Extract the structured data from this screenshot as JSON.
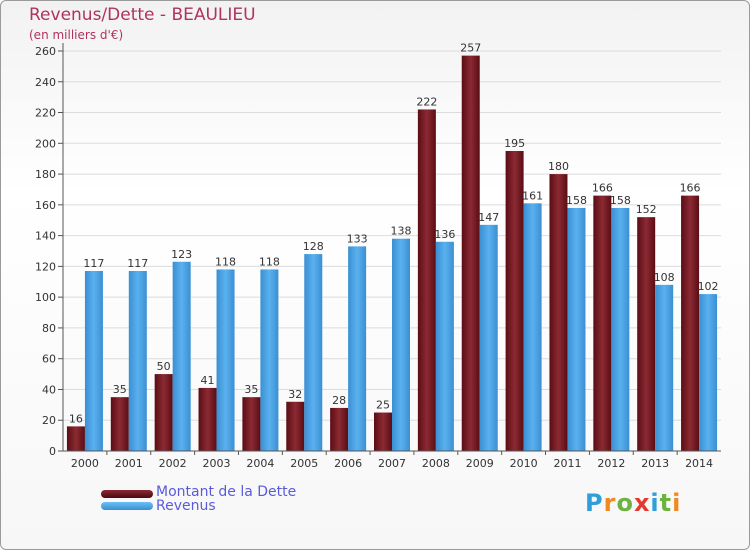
{
  "header": {
    "title": "Revenus/Dette - BEAULIEU",
    "subtitle": "(en milliers d'€)"
  },
  "colors": {
    "debt": "#7a1c24",
    "revenue": "#4aa3e6",
    "title": "#b0335a",
    "legend_text": "#5a5adc"
  },
  "logo": {
    "text": "Proxiti",
    "letter_colors": [
      "#2e9fd8",
      "#f08a1e",
      "#6cb33f",
      "#e23a2e",
      "#2e9fd8",
      "#6cb33f",
      "#f08a1e"
    ]
  },
  "chart_data": {
    "type": "bar",
    "title": "Revenus/Dette - BEAULIEU",
    "subtitle": "(en milliers d'€)",
    "categories": [
      "2000",
      "2001",
      "2002",
      "2003",
      "2004",
      "2005",
      "2006",
      "2007",
      "2008",
      "2009",
      "2010",
      "2011",
      "2012",
      "2013",
      "2014"
    ],
    "series": [
      {
        "name": "Montant de la Dette",
        "color": "#7a1c24",
        "values": [
          16,
          35,
          50,
          41,
          35,
          32,
          28,
          25,
          222,
          257,
          195,
          180,
          166,
          152,
          166
        ]
      },
      {
        "name": "Revenus",
        "color": "#4aa3e6",
        "values": [
          117,
          117,
          123,
          118,
          118,
          128,
          133,
          138,
          136,
          147,
          161,
          158,
          158,
          108,
          102
        ]
      }
    ],
    "ylim": [
      0,
      260
    ],
    "yticks": [
      0,
      20,
      40,
      60,
      80,
      100,
      120,
      140,
      160,
      180,
      200,
      220,
      240,
      260
    ],
    "grid": true,
    "legend": "bottom-left",
    "data_labels": true
  }
}
